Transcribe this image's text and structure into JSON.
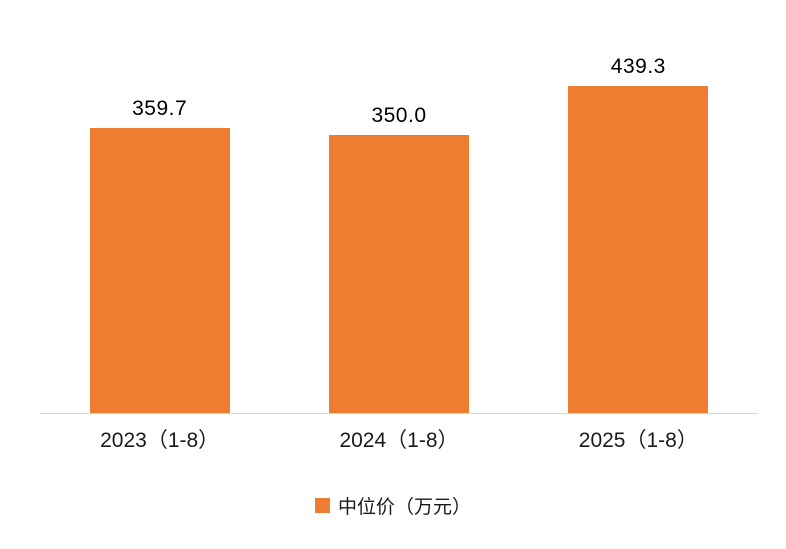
{
  "chart_data": {
    "type": "bar",
    "title": "",
    "xlabel": "",
    "ylabel": "",
    "categories": [
      "2023（1-8）",
      "2024（1-8）",
      "2025（1-8）"
    ],
    "values": [
      359.7,
      350.0,
      439.3
    ],
    "data_labels": [
      "359.7",
      "350.0",
      "439.3"
    ],
    "series_name": "中位价（万元）",
    "ylim": [
      0,
      450
    ],
    "grid": false,
    "bar_color": "#ed7d31",
    "axis_line_color": "#d9d9d9",
    "legend": {
      "label": "中位价（万元）",
      "position": "bottom"
    }
  }
}
